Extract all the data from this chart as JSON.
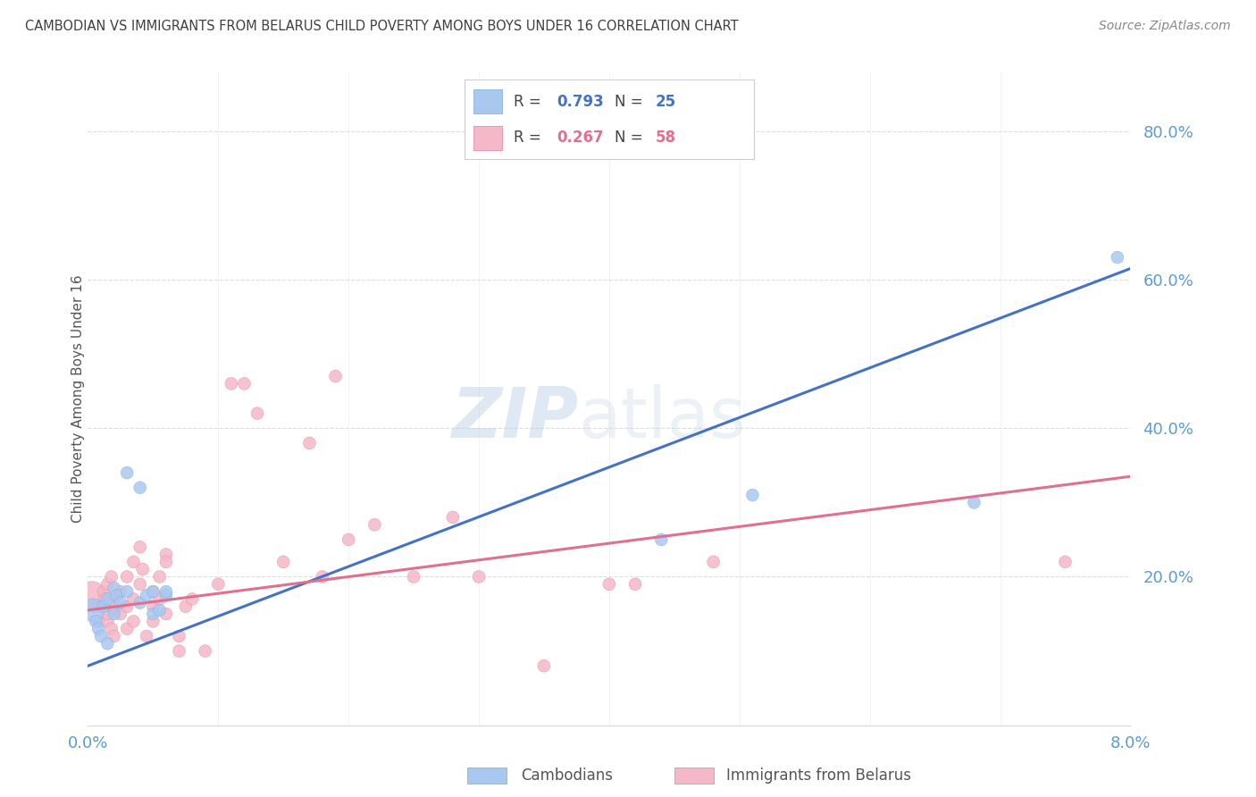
{
  "title": "CAMBODIAN VS IMMIGRANTS FROM BELARUS CHILD POVERTY AMONG BOYS UNDER 16 CORRELATION CHART",
  "source": "Source: ZipAtlas.com",
  "ylabel": "Child Poverty Among Boys Under 16",
  "background_color": "#ffffff",
  "watermark_zip": "ZIP",
  "watermark_atlas": "atlas",
  "cambodian_color": "#a8c8f0",
  "cambodian_edge_color": "#7baad4",
  "belarus_color": "#f5b8c8",
  "belarus_edge_color": "#e08098",
  "blue_line_color": "#4472c4",
  "pink_line_color": "#e07090",
  "r_cambodian": 0.793,
  "n_cambodian": 25,
  "r_belarus": 0.267,
  "n_belarus": 58,
  "legend_label_1": "Cambodians",
  "legend_label_2": "Immigrants from Belarus",
  "ytick_labels": [
    "20.0%",
    "40.0%",
    "60.0%",
    "80.0%"
  ],
  "ytick_values": [
    0.2,
    0.4,
    0.6,
    0.8
  ],
  "xmin": 0.0,
  "xmax": 0.08,
  "ymin": 0.0,
  "ymax": 0.88,
  "blue_line_x": [
    0.0,
    0.08
  ],
  "blue_line_y": [
    0.08,
    0.615
  ],
  "pink_line_x": [
    0.0,
    0.08
  ],
  "pink_line_y": [
    0.155,
    0.335
  ],
  "cambodian_x": [
    0.0004,
    0.0006,
    0.0008,
    0.001,
    0.0012,
    0.0015,
    0.0015,
    0.002,
    0.002,
    0.0022,
    0.0025,
    0.003,
    0.003,
    0.004,
    0.004,
    0.0045,
    0.005,
    0.005,
    0.0055,
    0.006,
    0.006,
    0.044,
    0.051,
    0.068,
    0.079
  ],
  "cambodian_y": [
    0.155,
    0.14,
    0.13,
    0.12,
    0.16,
    0.17,
    0.11,
    0.185,
    0.15,
    0.175,
    0.165,
    0.18,
    0.34,
    0.32,
    0.165,
    0.175,
    0.18,
    0.15,
    0.155,
    0.175,
    0.18,
    0.25,
    0.31,
    0.3,
    0.63
  ],
  "cambodian_sizes": [
    350,
    100,
    100,
    100,
    100,
    100,
    100,
    100,
    100,
    100,
    100,
    100,
    100,
    100,
    100,
    100,
    100,
    100,
    100,
    100,
    100,
    100,
    100,
    100,
    100
  ],
  "belarus_x": [
    0.0003,
    0.0005,
    0.0008,
    0.001,
    0.0012,
    0.0013,
    0.0015,
    0.0015,
    0.0015,
    0.0018,
    0.0018,
    0.002,
    0.002,
    0.002,
    0.0022,
    0.0025,
    0.0025,
    0.003,
    0.003,
    0.003,
    0.0035,
    0.0035,
    0.0035,
    0.004,
    0.004,
    0.0042,
    0.0045,
    0.005,
    0.005,
    0.005,
    0.0055,
    0.0055,
    0.006,
    0.006,
    0.006,
    0.007,
    0.007,
    0.0075,
    0.008,
    0.009,
    0.01,
    0.011,
    0.012,
    0.013,
    0.015,
    0.017,
    0.018,
    0.019,
    0.02,
    0.022,
    0.025,
    0.028,
    0.03,
    0.035,
    0.04,
    0.042,
    0.048,
    0.075
  ],
  "belarus_y": [
    0.175,
    0.16,
    0.14,
    0.16,
    0.18,
    0.17,
    0.14,
    0.15,
    0.19,
    0.13,
    0.2,
    0.12,
    0.155,
    0.17,
    0.16,
    0.15,
    0.18,
    0.13,
    0.16,
    0.2,
    0.14,
    0.22,
    0.17,
    0.24,
    0.19,
    0.21,
    0.12,
    0.14,
    0.16,
    0.18,
    0.2,
    0.17,
    0.23,
    0.15,
    0.22,
    0.1,
    0.12,
    0.16,
    0.17,
    0.1,
    0.19,
    0.46,
    0.46,
    0.42,
    0.22,
    0.38,
    0.2,
    0.47,
    0.25,
    0.27,
    0.2,
    0.28,
    0.2,
    0.08,
    0.19,
    0.19,
    0.22,
    0.22
  ],
  "belarus_sizes": [
    500,
    100,
    100,
    100,
    100,
    100,
    100,
    100,
    100,
    100,
    100,
    100,
    100,
    100,
    100,
    100,
    100,
    100,
    100,
    100,
    100,
    100,
    100,
    100,
    100,
    100,
    100,
    100,
    100,
    100,
    100,
    100,
    100,
    100,
    100,
    100,
    100,
    100,
    100,
    100,
    100,
    100,
    100,
    100,
    100,
    100,
    100,
    100,
    100,
    100,
    100,
    100,
    100,
    100,
    100,
    100,
    100,
    100
  ],
  "grid_color": "#dddddd",
  "axis_label_color": "#5b9bd5",
  "title_color": "#404040",
  "ylabel_color": "#555555",
  "legend_text_color": "#444444",
  "source_color": "#888888"
}
